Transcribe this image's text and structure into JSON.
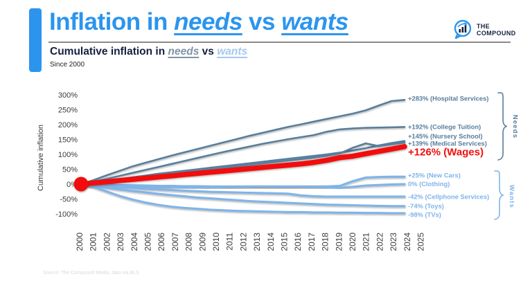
{
  "slide": {
    "title": {
      "prefix": "Inflation in ",
      "needs": "needs",
      "mid": " vs ",
      "wants": "wants"
    },
    "subtitle": {
      "prefix": "Cumulative inflation in ",
      "needs": "needs",
      "mid": " vs ",
      "wants": "wants"
    },
    "since": "Since 2000",
    "source": "Source: The Compound Media, data via BLS",
    "logo": {
      "line1": "THE",
      "line2": "COMPOUND"
    }
  },
  "colors": {
    "accent_blue": "#2B95EE",
    "navy": "#15203E",
    "needs": "#587E9C",
    "subtitle_needs": "#7F93A6",
    "wants": "#7FB4E9",
    "subtitle_wants": "#A5C8EF",
    "red": "#F10E0E",
    "divider": "#8A8A8A",
    "tick": "#3A3A3A",
    "source": "#D9D9D9"
  },
  "chart_data": {
    "type": "line",
    "title": "Cumulative inflation in needs vs wants",
    "subtitle": "Since 2000",
    "ylabel": "Cumulative inflation",
    "xlabel": "",
    "ylim": [
      -125,
      325
    ],
    "grid": false,
    "legend_position": "right-edge-labels",
    "x": [
      2000,
      2001,
      2002,
      2003,
      2004,
      2005,
      2006,
      2007,
      2008,
      2009,
      2010,
      2011,
      2012,
      2013,
      2014,
      2015,
      2016,
      2017,
      2018,
      2019,
      2020,
      2021,
      2022,
      2023,
      2024,
      2025
    ],
    "yticks": [
      {
        "v": 300,
        "label": "300%"
      },
      {
        "v": 250,
        "label": "250%"
      },
      {
        "v": 200,
        "label": "200%"
      },
      {
        "v": 150,
        "label": "150%"
      },
      {
        "v": 100,
        "label": "100%"
      },
      {
        "v": 50,
        "label": "50%"
      },
      {
        "v": 0,
        "label": "0%"
      },
      {
        "v": -50,
        "label": "-50%"
      },
      {
        "v": -100,
        "label": "-100%"
      }
    ],
    "groups": [
      {
        "name": "Needs"
      },
      {
        "name": "Wants"
      }
    ],
    "start_marker": {
      "year": 2000,
      "value": 0,
      "color": "#F10E0E"
    },
    "series": [
      {
        "name": "Hospital Services",
        "group": "Needs",
        "label": "+283% (Hospital Services)",
        "end_value": 283,
        "color": "#587E9C",
        "width": 2.6,
        "emphasis": false,
        "values": [
          0,
          14,
          30,
          45,
          60,
          72,
          84,
          96,
          107,
          118,
          129,
          140,
          151,
          162,
          172,
          182,
          192,
          201,
          210,
          219,
          228,
          237,
          248,
          264,
          279,
          283
        ]
      },
      {
        "name": "College Tuition",
        "group": "Needs",
        "label": "+192% (College Tuition)",
        "end_value": 192,
        "color": "#587E9C",
        "width": 2.6,
        "emphasis": false,
        "values": [
          0,
          9,
          18,
          28,
          38,
          48,
          58,
          68,
          78,
          88,
          98,
          108,
          117,
          126,
          135,
          143,
          151,
          158,
          165,
          176,
          184,
          187,
          189,
          190,
          191,
          192
        ]
      },
      {
        "name": "Nursery School",
        "group": "Needs",
        "label": "+145% (Nursery School)",
        "end_value": 145,
        "color": "#587E9C",
        "width": 2.6,
        "emphasis": false,
        "values": [
          0,
          5,
          11,
          17,
          23,
          29,
          35,
          40,
          45,
          50,
          55,
          60,
          65,
          70,
          75,
          80,
          85,
          90,
          95,
          100,
          106,
          113,
          121,
          130,
          138,
          145
        ]
      },
      {
        "name": "Medical Services",
        "group": "Needs",
        "label": "+139% (Medical Services)",
        "end_value": 139,
        "color": "#587E9C",
        "width": 2.6,
        "emphasis": false,
        "values": [
          0,
          4,
          9,
          14,
          19,
          24,
          29,
          34,
          39,
          44,
          49,
          54,
          59,
          64,
          69,
          74,
          79,
          84,
          89,
          95,
          103,
          122,
          137,
          128,
          134,
          139
        ]
      },
      {
        "name": "New Cars",
        "group": "Wants",
        "label": "+25% (New Cars)",
        "end_value": 25,
        "color": "#7FB4E9",
        "width": 3.1,
        "emphasis": false,
        "values": [
          0,
          -1,
          -2,
          -3,
          -4,
          -5,
          -6,
          -6,
          -7,
          -7,
          -8,
          -8,
          -8,
          -8,
          -8,
          -8,
          -8,
          -8,
          -8,
          -8,
          -6,
          10,
          22,
          24,
          25,
          25
        ]
      },
      {
        "name": "Clothing",
        "group": "Wants",
        "label": "0% (Clothing)",
        "end_value": 0,
        "color": "#7FB4E9",
        "width": 3.1,
        "emphasis": false,
        "values": [
          0,
          -2,
          -4,
          -6,
          -7,
          -8,
          -9,
          -9,
          -10,
          -10,
          -10,
          -9,
          -9,
          -8,
          -8,
          -8,
          -8,
          -8,
          -9,
          -10,
          -13,
          -9,
          -5,
          -3,
          -1,
          0
        ]
      },
      {
        "name": "Cellphone Services",
        "group": "Wants",
        "label": "-42% (Cellphone Services)",
        "end_value": -42,
        "color": "#7FB4E9",
        "width": 3.1,
        "emphasis": false,
        "values": [
          0,
          -4,
          -7,
          -10,
          -13,
          -16,
          -18,
          -20,
          -22,
          -24,
          -26,
          -27,
          -28,
          -29,
          -30,
          -31,
          -32,
          -38,
          -41,
          -42,
          -42,
          -42,
          -42,
          -42,
          -42,
          -42
        ]
      },
      {
        "name": "Toys",
        "group": "Wants",
        "label": "-74% (Toys)",
        "end_value": -74,
        "color": "#7FB4E9",
        "width": 3.1,
        "emphasis": false,
        "values": [
          0,
          -6,
          -12,
          -18,
          -23,
          -28,
          -33,
          -37,
          -41,
          -45,
          -48,
          -51,
          -54,
          -57,
          -59,
          -61,
          -63,
          -65,
          -67,
          -69,
          -70,
          -71,
          -72,
          -73,
          -74,
          -74
        ]
      },
      {
        "name": "TVs",
        "group": "Wants",
        "label": "-98% (TVs)",
        "end_value": -98,
        "color": "#7FB4E9",
        "width": 3.1,
        "emphasis": false,
        "values": [
          0,
          -10,
          -25,
          -40,
          -52,
          -62,
          -70,
          -76,
          -80,
          -83,
          -86,
          -88,
          -90,
          -91,
          -92,
          -93,
          -94,
          -94,
          -95,
          -95,
          -96,
          -96,
          -97,
          -97,
          -98,
          -98
        ]
      },
      {
        "name": "Wages",
        "group": "Needs",
        "label": "+126% (Wages)",
        "end_value": 126,
        "color": "#F10E0E",
        "width": 7.5,
        "emphasis": true,
        "values": [
          0,
          4,
          8,
          12,
          16,
          20,
          24,
          28,
          32,
          36,
          40,
          44,
          48,
          52,
          56,
          60,
          64,
          68,
          73,
          80,
          89,
          94,
          102,
          110,
          118,
          126
        ]
      }
    ]
  }
}
